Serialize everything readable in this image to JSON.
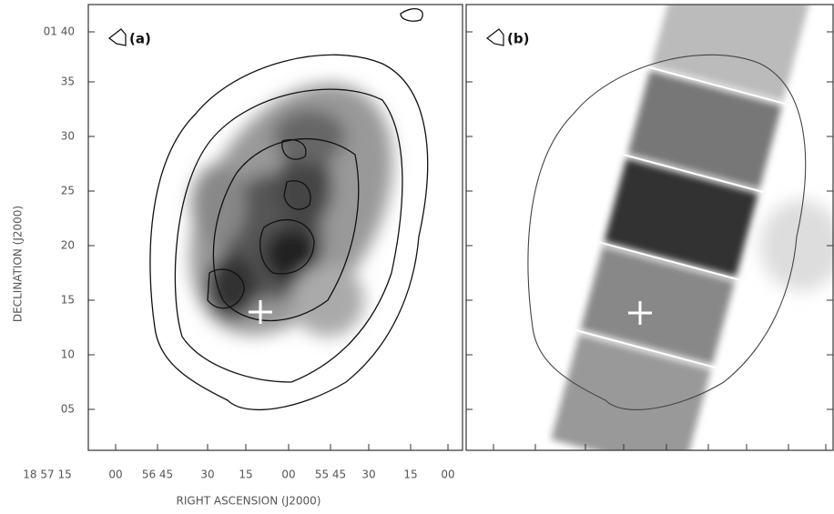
{
  "y_axis": {
    "label": "DECLINATION (J2000)",
    "ticks": [
      "01 40",
      "35",
      "30",
      "25",
      "20",
      "15",
      "10",
      "05"
    ]
  },
  "x_axis": {
    "label": "RIGHT ASCENSION (J2000)",
    "ticks": [
      "18 57 15",
      "00",
      "56 45",
      "30",
      "15",
      "00",
      "55 45",
      "30",
      "15",
      "00"
    ]
  },
  "panels": [
    {
      "label": "(a)"
    },
    {
      "label": "(b)"
    }
  ]
}
